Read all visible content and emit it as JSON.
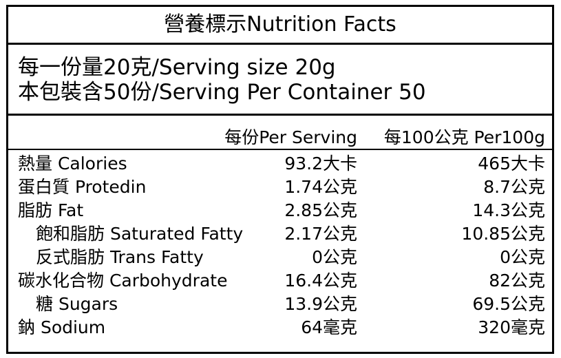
{
  "title": "營養標示Nutrition Facts",
  "serving": {
    "size": "每一份量20克/Serving size 20g",
    "per_container": "本包裝含50份/Serving Per Container 50"
  },
  "table": {
    "header": [
      "每份Per Serving",
      "每100公克 Per100g"
    ],
    "rows": [
      [
        "熱量 Calories",
        "93.2大卡",
        "465大卡"
      ],
      [
        "蛋白質 Protedin",
        "1.74公克",
        "8.7公克"
      ],
      [
        "脂肪 Fat",
        "2.85公克",
        "14.3公克"
      ],
      [
        "飽和脂肪 Saturated Fatty",
        "2.17公克",
        "10.85公克"
      ],
      [
        "反式脂肪 Trans Fatty",
        "0公克",
        "0公克"
      ],
      [
        "碳水化合物 Carbohydrate",
        "16.4公克",
        "82公克"
      ],
      [
        "糖 Sugars",
        "13.9公克",
        "69.5公克"
      ],
      [
        "鈉 Sodium",
        "64毫克",
        "320毫克"
      ]
    ]
  }
}
